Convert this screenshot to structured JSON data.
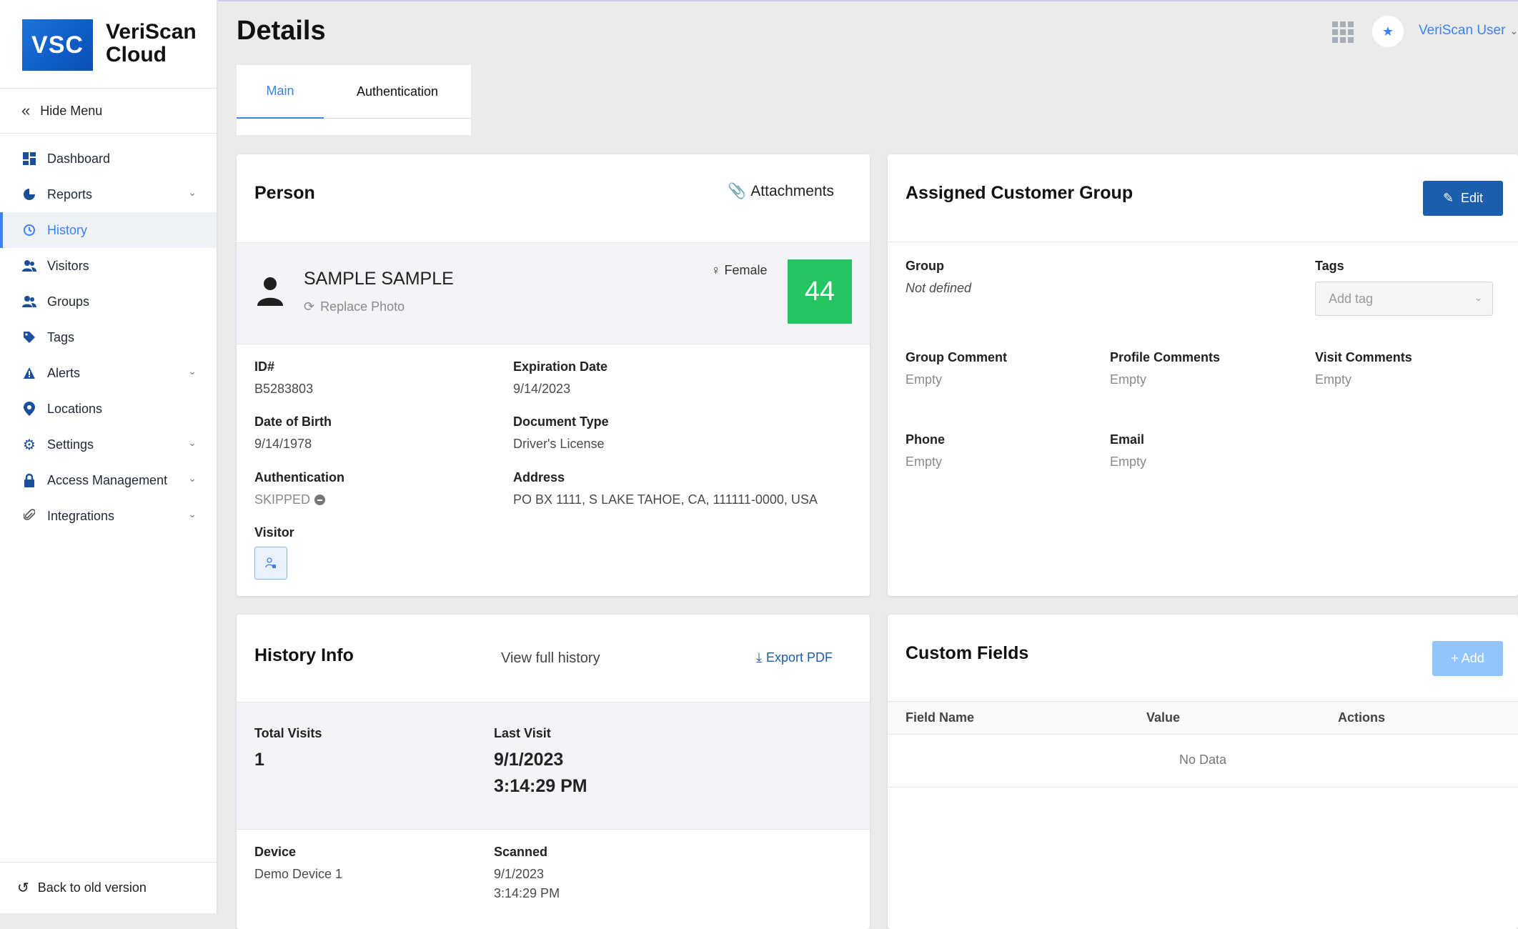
{
  "brand": {
    "logo": "VSC",
    "name_line1": "VeriScan",
    "name_line2": "Cloud"
  },
  "sidebar": {
    "hide_menu": "Hide Menu",
    "items": [
      {
        "label": "Dashboard",
        "icon": "dashboard-icon"
      },
      {
        "label": "Reports",
        "icon": "pie-chart-icon",
        "expandable": true
      },
      {
        "label": "History",
        "icon": "history-icon",
        "active": true
      },
      {
        "label": "Visitors",
        "icon": "users-icon"
      },
      {
        "label": "Groups",
        "icon": "users-icon"
      },
      {
        "label": "Tags",
        "icon": "tag-icon"
      },
      {
        "label": "Alerts",
        "icon": "warning-icon",
        "expandable": true
      },
      {
        "label": "Locations",
        "icon": "map-pin-icon"
      },
      {
        "label": "Settings",
        "icon": "gear-icon",
        "expandable": true
      },
      {
        "label": "Access Management",
        "icon": "lock-icon",
        "expandable": true
      },
      {
        "label": "Integrations",
        "icon": "paperclip-icon",
        "expandable": true
      }
    ],
    "back_old": "Back to old version"
  },
  "header": {
    "title": "Details",
    "user": "VeriScan User"
  },
  "tabs": [
    {
      "label": "Main",
      "active": true
    },
    {
      "label": "Authentication"
    }
  ],
  "person": {
    "title": "Person",
    "attachments": "Attachments",
    "name": "SAMPLE SAMPLE",
    "replace_photo": "Replace Photo",
    "gender": "Female",
    "age": "44",
    "fields": {
      "id_label": "ID#",
      "id_value": "B5283803",
      "exp_label": "Expiration Date",
      "exp_value": "9/14/2023",
      "dob_label": "Date of Birth",
      "dob_value": "9/14/1978",
      "doc_label": "Document Type",
      "doc_value": "Driver's License",
      "auth_label": "Authentication",
      "auth_value": "SKIPPED",
      "addr_label": "Address",
      "addr_value": "PO BX 1111, S LAKE TAHOE, CA, 111111-0000, USA",
      "visitor_label": "Visitor"
    }
  },
  "group": {
    "title": "Assigned Customer Group",
    "edit": "Edit",
    "group_label": "Group",
    "group_value": "Not defined",
    "tags_label": "Tags",
    "tags_placeholder": "Add tag",
    "group_comment_label": "Group Comment",
    "group_comment_value": "Empty",
    "profile_comments_label": "Profile Comments",
    "profile_comments_value": "Empty",
    "visit_comments_label": "Visit Comments",
    "visit_comments_value": "Empty",
    "phone_label": "Phone",
    "phone_value": "Empty",
    "email_label": "Email",
    "email_value": "Empty"
  },
  "history": {
    "title": "History Info",
    "view_full": "View full history",
    "export": "Export PDF",
    "total_visits_label": "Total Visits",
    "total_visits_value": "1",
    "last_visit_label": "Last Visit",
    "last_visit_date": "9/1/2023",
    "last_visit_time": "3:14:29 PM",
    "device_label": "Device",
    "device_value": "Demo Device 1",
    "scanned_label": "Scanned",
    "scanned_date": "9/1/2023",
    "scanned_time": "3:14:29 PM"
  },
  "custom_fields": {
    "title": "Custom Fields",
    "add": "+ Add",
    "columns": [
      "Field Name",
      "Value",
      "Actions"
    ],
    "empty": "No Data"
  },
  "colors": {
    "accent": "#3b82f6",
    "primary_button": "#1b5eae",
    "age_badge": "#22c55e"
  }
}
